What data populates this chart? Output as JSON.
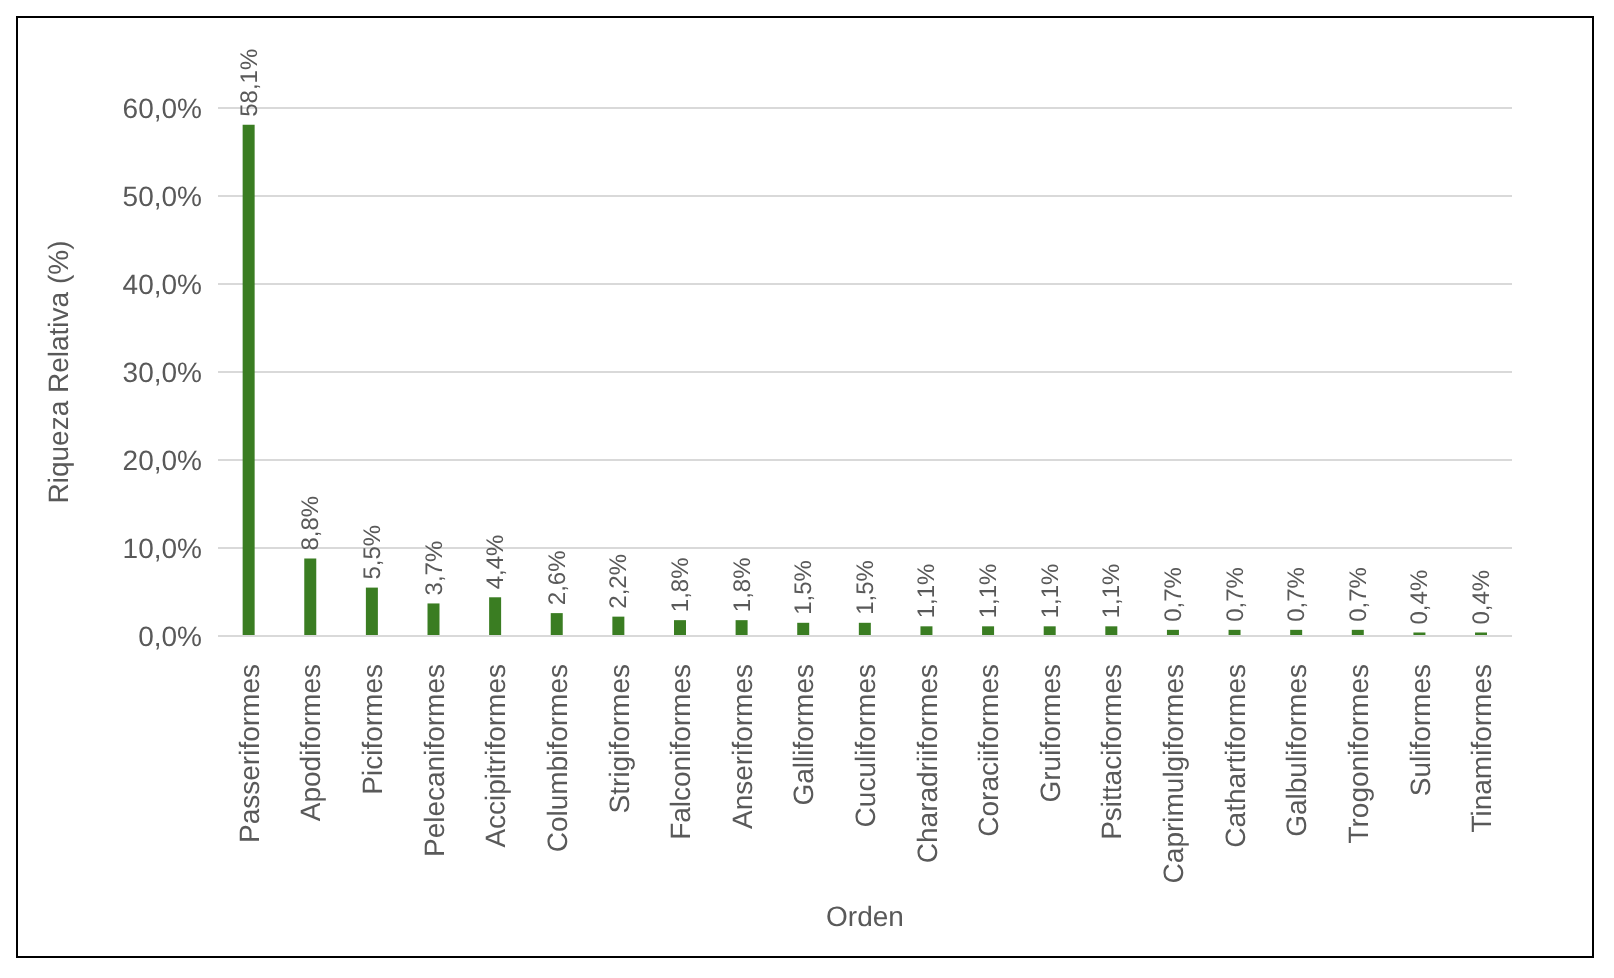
{
  "chart_data": {
    "type": "bar",
    "xlabel": "Orden",
    "ylabel": "Riqueza Relativa (%)",
    "categories": [
      "Passeriformes",
      "Apodiformes",
      "Piciformes",
      "Pelecaniformes",
      "Accipitriformes",
      "Columbiformes",
      "Strigiformes",
      "Falconiformes",
      "Anseriformes",
      "Galliformes",
      "Cuculiformes",
      "Charadriiformes",
      "Coraciiformes",
      "Gruiformes",
      "Psittaciformes",
      "Caprimulgiformes",
      "Cathartiformes",
      "Galbuliformes",
      "Trogoniformes",
      "Suliformes",
      "Tinamiformes"
    ],
    "values": [
      58.1,
      8.8,
      5.5,
      3.7,
      4.4,
      2.6,
      2.2,
      1.8,
      1.8,
      1.5,
      1.5,
      1.1,
      1.1,
      1.1,
      1.1,
      0.7,
      0.7,
      0.7,
      0.7,
      0.4,
      0.4
    ],
    "value_labels": [
      "58,1%",
      "8,8%",
      "5,5%",
      "3,7%",
      "4,4%",
      "2,6%",
      "2,2%",
      "1,8%",
      "1,8%",
      "1,5%",
      "1,5%",
      "1,1%",
      "1,1%",
      "1,1%",
      "1,1%",
      "0,7%",
      "0,7%",
      "0,7%",
      "0,7%",
      "0,4%",
      "0,4%"
    ],
    "color": "#3a7d22",
    "ylim": [
      0,
      60
    ],
    "yticks": [
      {
        "value": 0,
        "label": "0,0%"
      },
      {
        "value": 10,
        "label": "10,0%"
      },
      {
        "value": 20,
        "label": "20,0%"
      },
      {
        "value": 30,
        "label": "30,0%"
      },
      {
        "value": 40,
        "label": "40,0%"
      },
      {
        "value": 50,
        "label": "50,0%"
      },
      {
        "value": 60,
        "label": "60,0%"
      }
    ],
    "grid": "y"
  }
}
